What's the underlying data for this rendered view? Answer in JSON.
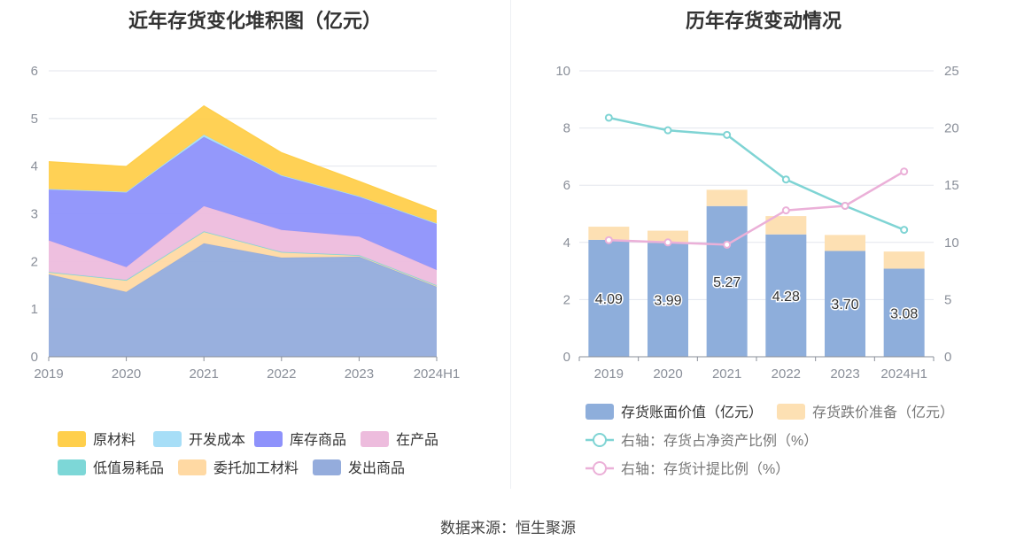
{
  "source": "数据来源：恒生聚源",
  "chart_data": [
    {
      "type": "area",
      "stacked": true,
      "title": "近年存货变化堆积图（亿元）",
      "categories": [
        "2019",
        "2020",
        "2021",
        "2022",
        "2023",
        "2024H1"
      ],
      "yticks": [
        "0",
        "1",
        "2",
        "3",
        "4",
        "5",
        "6"
      ],
      "ylim": [
        0,
        6
      ],
      "grid": true,
      "legend_position": "bottom",
      "series": [
        {
          "name": "发出商品",
          "color": "#94acdc",
          "values": [
            1.73,
            1.36,
            2.38,
            2.08,
            2.1,
            1.47
          ]
        },
        {
          "name": "委托加工材料",
          "color": "#ffd9a3",
          "values": [
            0.05,
            0.25,
            0.25,
            0.12,
            0.03,
            0.03
          ]
        },
        {
          "name": "低值易耗品",
          "color": "#7dd7d7",
          "values": [
            0.0,
            0.0,
            0.0,
            0.0,
            0.0,
            0.0
          ]
        },
        {
          "name": "在产品",
          "color": "#edbcdd",
          "values": [
            0.66,
            0.27,
            0.53,
            0.46,
            0.39,
            0.32
          ]
        },
        {
          "name": "库存商品",
          "color": "#8e92fb",
          "values": [
            1.08,
            1.58,
            1.45,
            1.15,
            0.85,
            0.98
          ]
        },
        {
          "name": "开发成本",
          "color": "#a7def7",
          "values": [
            0.0,
            0.0,
            0.05,
            0.0,
            0.0,
            0.0
          ]
        },
        {
          "name": "原材料",
          "color": "#ffcf4c",
          "values": [
            0.57,
            0.53,
            0.6,
            0.47,
            0.31,
            0.26
          ]
        }
      ],
      "legend_order": [
        "原材料",
        "开发成本",
        "库存商品",
        "在产品",
        "低值易耗品",
        "委托加工材料",
        "发出商品"
      ]
    },
    {
      "type": "bar",
      "stacked": true,
      "title": "历年存货变动情况",
      "categories": [
        "2019",
        "2020",
        "2021",
        "2022",
        "2023",
        "2024H1"
      ],
      "yticks_left": [
        "0",
        "2",
        "4",
        "6",
        "8",
        "10"
      ],
      "ylim_left": [
        0,
        10
      ],
      "yticks_right": [
        "0",
        "5",
        "10",
        "15",
        "20",
        "25"
      ],
      "ylim_right": [
        0,
        25
      ],
      "grid": true,
      "legend_position": "bottom",
      "bars": [
        {
          "name": "存货账面价值（亿元）",
          "color": "#8eaedb",
          "values": [
            4.09,
            3.99,
            5.27,
            4.28,
            3.7,
            3.08
          ],
          "labels": [
            "4.09",
            "3.99",
            "5.27",
            "4.28",
            "3.70",
            "3.08"
          ]
        },
        {
          "name": "存货跌价准备（亿元）",
          "color": "#fde0b3",
          "values": [
            0.46,
            0.42,
            0.57,
            0.64,
            0.56,
            0.6
          ]
        }
      ],
      "lines": [
        {
          "name": "右轴：存货占净资产比例（%）",
          "color": "#7fd4d4",
          "axis": "right",
          "values": [
            20.9,
            19.8,
            19.4,
            15.5,
            13.2,
            11.1
          ]
        },
        {
          "name": "右轴：存货计提比例（%）",
          "color": "#ebb0d8",
          "axis": "right",
          "values": [
            10.2,
            10.0,
            9.8,
            12.8,
            13.2,
            16.2
          ]
        }
      ]
    }
  ]
}
